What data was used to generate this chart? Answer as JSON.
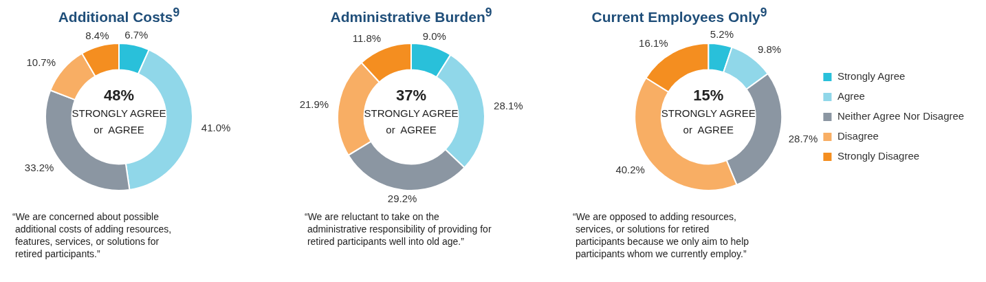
{
  "chart_data": [
    {
      "type": "donut",
      "title": "Additional Costs$^{9}$",
      "categories": [
        null,
        null,
        null,
        null,
        null
      ],
      "values": [
        6.7,
        41.0,
        33.2,
        10.7,
        8.4
      ],
      "value_labels": [
        "6.7%",
        "41.0%",
        "33.2%",
        "10.7%",
        "8.4%"
      ],
      "colors": [
        "#29c0da",
        "#90d7e9",
        "#8b96a2",
        "#f8ae64",
        "#f48e20"
      ],
      "legend": false,
      "annotations": [
        "48%",
        "STRONGLY AGREE\nor  AGREE",
        "“We are concerned about possible\n additional costs of adding resources,\n features, services, or solutions for\n retired participants.”"
      ]
    },
    {
      "type": "donut",
      "title": "Administrative Burden$^{9}$",
      "categories": [
        null,
        null,
        null,
        null,
        null
      ],
      "values": [
        9.0,
        28.1,
        29.2,
        21.9,
        11.8
      ],
      "value_labels": [
        "9.0%",
        "28.1%",
        "29.2%",
        "21.9%",
        "11.8%"
      ],
      "colors": [
        "#29c0da",
        "#90d7e9",
        "#8b96a2",
        "#f8ae64",
        "#f48e20"
      ],
      "legend": false,
      "annotations": [
        "37%",
        "STRONGLY AGREE\nor  AGREE",
        "“We are reluctant to take on the\n administrative responsibility of providing for\n retired participants well into old age.”"
      ]
    },
    {
      "type": "donut",
      "title": "Current Employees Only$^{9}$",
      "categories": [
        "Strongly Agree",
        "Agree",
        "Neither Agree Nor Disagree",
        "Disagree",
        "Strongly Disagree"
      ],
      "values": [
        5.2,
        9.8,
        28.7,
        40.2,
        16.1
      ],
      "value_labels": [
        "5.2%",
        "9.8%",
        "28.7%",
        "40.2%",
        "16.1%"
      ],
      "colors": [
        "#29c0da",
        "#90d7e9",
        "#8b96a2",
        "#f8ae64",
        "#f48e20"
      ],
      "legend": "right",
      "annotations": [
        "15%",
        "STRONGLY AGREE\nor  AGREE",
        "“We are opposed to adding resources,\n services, or solutions for retired\n participants because we only aim to help\n participants whom we currently employ.”"
      ]
    }
  ]
}
